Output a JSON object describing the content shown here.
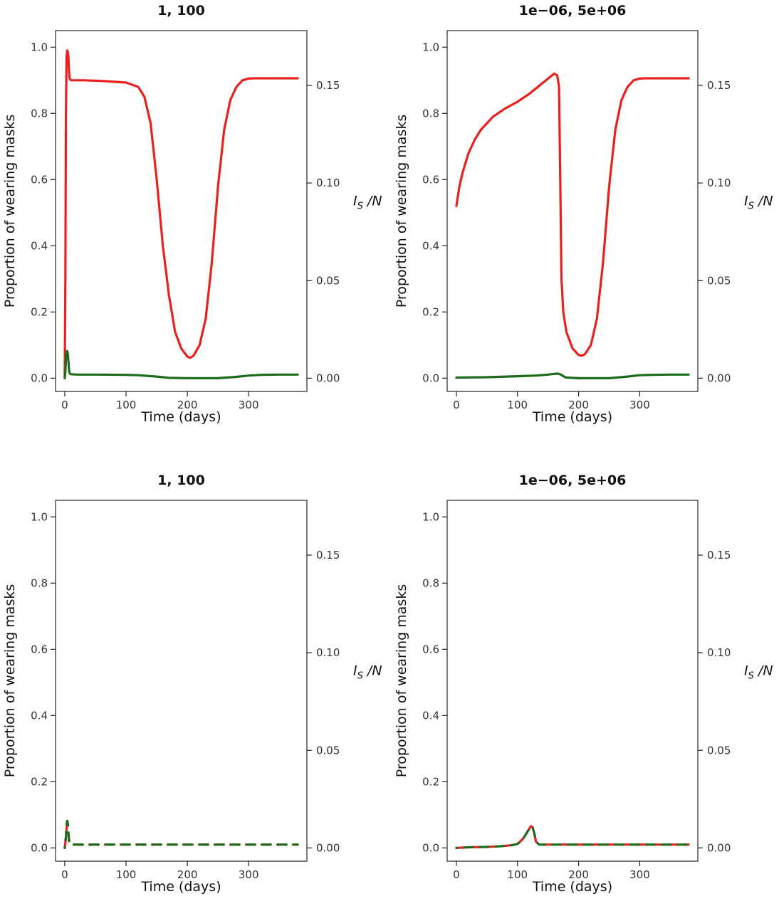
{
  "colors": {
    "red": "#e8201e",
    "green": "#1c6b1c",
    "axis": "#222222"
  },
  "axes_common": {
    "xlabel": "Time (days)",
    "ylabel_left": "Proportion of wearing masks",
    "ylabel_right_main": "I",
    "ylabel_right_sub": "S",
    "ylabel_right_tail": "/N",
    "xticks": [
      0,
      100,
      200,
      300
    ],
    "xlim": [
      -15,
      395
    ],
    "yticks_left": [
      "0.0",
      "0.2",
      "0.4",
      "0.6",
      "0.8",
      "1.0"
    ],
    "ylim_left": [
      -0.04,
      1.05
    ],
    "yticks_right": [
      "0.00",
      "0.05",
      "0.10",
      "0.15"
    ],
    "right_max": 0.1696
  },
  "chart_data": [
    {
      "type": "line",
      "title": "1, 100",
      "series": [
        {
          "color": "red",
          "x": [
            0,
            1,
            2,
            3,
            4,
            5,
            6,
            7,
            8,
            10,
            15,
            30,
            60,
            100,
            120,
            130,
            140,
            150,
            160,
            170,
            180,
            190,
            200,
            205,
            210,
            220,
            230,
            240,
            250,
            260,
            270,
            280,
            290,
            300,
            310,
            320,
            340,
            360,
            380
          ],
          "values": [
            0.0,
            0.3,
            0.8,
            0.97,
            0.99,
            0.985,
            0.97,
            0.93,
            0.905,
            0.9,
            0.9,
            0.9,
            0.898,
            0.893,
            0.88,
            0.85,
            0.77,
            0.6,
            0.4,
            0.25,
            0.14,
            0.09,
            0.065,
            0.062,
            0.068,
            0.1,
            0.18,
            0.35,
            0.58,
            0.75,
            0.84,
            0.88,
            0.9,
            0.905,
            0.906,
            0.906,
            0.906,
            0.906,
            0.906
          ]
        },
        {
          "color": "green",
          "x": [
            0,
            1,
            2,
            3,
            4,
            5,
            6,
            7,
            8,
            10,
            20,
            50,
            100,
            120,
            150,
            170,
            200,
            250,
            280,
            300,
            320,
            350,
            380
          ],
          "values": [
            0.0,
            0.02,
            0.06,
            0.08,
            0.082,
            0.075,
            0.05,
            0.025,
            0.015,
            0.012,
            0.011,
            0.011,
            0.01,
            0.009,
            0.005,
            0.001,
            0.0,
            0.0,
            0.004,
            0.008,
            0.01,
            0.011,
            0.011
          ]
        }
      ]
    },
    {
      "type": "line",
      "title": "1e−06, 5e+06",
      "series": [
        {
          "color": "red",
          "x": [
            0,
            5,
            10,
            20,
            30,
            40,
            50,
            60,
            80,
            100,
            120,
            140,
            150,
            160,
            165,
            168,
            170,
            172,
            175,
            180,
            190,
            200,
            205,
            210,
            220,
            230,
            240,
            250,
            260,
            270,
            280,
            290,
            300,
            310,
            320,
            340,
            360,
            380
          ],
          "values": [
            0.52,
            0.58,
            0.62,
            0.68,
            0.72,
            0.75,
            0.77,
            0.79,
            0.815,
            0.835,
            0.86,
            0.89,
            0.905,
            0.92,
            0.915,
            0.88,
            0.6,
            0.3,
            0.2,
            0.14,
            0.09,
            0.07,
            0.068,
            0.072,
            0.1,
            0.18,
            0.35,
            0.58,
            0.75,
            0.84,
            0.88,
            0.9,
            0.905,
            0.906,
            0.906,
            0.906,
            0.906,
            0.906
          ]
        },
        {
          "color": "green",
          "x": [
            0,
            50,
            100,
            130,
            150,
            160,
            165,
            170,
            175,
            180,
            200,
            250,
            280,
            300,
            320,
            350,
            380
          ],
          "values": [
            0.002,
            0.003,
            0.006,
            0.008,
            0.011,
            0.013,
            0.014,
            0.012,
            0.006,
            0.002,
            0.0,
            0.0,
            0.005,
            0.009,
            0.01,
            0.011,
            0.011
          ]
        }
      ]
    },
    {
      "type": "line",
      "title": "1, 100",
      "series": [
        {
          "color": "red",
          "dashed": true,
          "x": [
            0,
            2,
            3,
            4,
            5,
            6,
            7,
            8,
            10,
            20,
            100,
            200,
            300,
            380
          ],
          "values": [
            0.0,
            0.03,
            0.06,
            0.07,
            0.06,
            0.04,
            0.02,
            0.012,
            0.01,
            0.01,
            0.01,
            0.01,
            0.01,
            0.01
          ]
        },
        {
          "color": "green",
          "dashed": true,
          "x": [
            0,
            2,
            3,
            4,
            5,
            6,
            7,
            8,
            10,
            20,
            100,
            200,
            300,
            380
          ],
          "values": [
            0.0,
            0.035,
            0.07,
            0.082,
            0.075,
            0.05,
            0.025,
            0.015,
            0.011,
            0.01,
            0.01,
            0.01,
            0.01,
            0.01
          ]
        }
      ]
    },
    {
      "type": "line",
      "title": "1e−06, 5e+06",
      "series": [
        {
          "color": "red",
          "dashed": true,
          "x": [
            0,
            20,
            50,
            70,
            90,
            100,
            105,
            110,
            115,
            120,
            122,
            125,
            128,
            130,
            135,
            140,
            150,
            200,
            300,
            380
          ],
          "values": [
            0.0,
            0.002,
            0.003,
            0.005,
            0.008,
            0.012,
            0.02,
            0.03,
            0.045,
            0.06,
            0.066,
            0.062,
            0.04,
            0.02,
            0.01,
            0.01,
            0.01,
            0.01,
            0.01,
            0.01
          ]
        },
        {
          "color": "green",
          "dashed": true,
          "x": [
            0,
            20,
            50,
            70,
            90,
            100,
            105,
            110,
            115,
            120,
            122,
            125,
            128,
            130,
            135,
            140,
            150,
            200,
            300,
            380
          ],
          "values": [
            0.0,
            0.002,
            0.003,
            0.005,
            0.008,
            0.012,
            0.02,
            0.03,
            0.045,
            0.06,
            0.065,
            0.061,
            0.04,
            0.02,
            0.01,
            0.01,
            0.01,
            0.01,
            0.01,
            0.01
          ]
        }
      ]
    }
  ]
}
